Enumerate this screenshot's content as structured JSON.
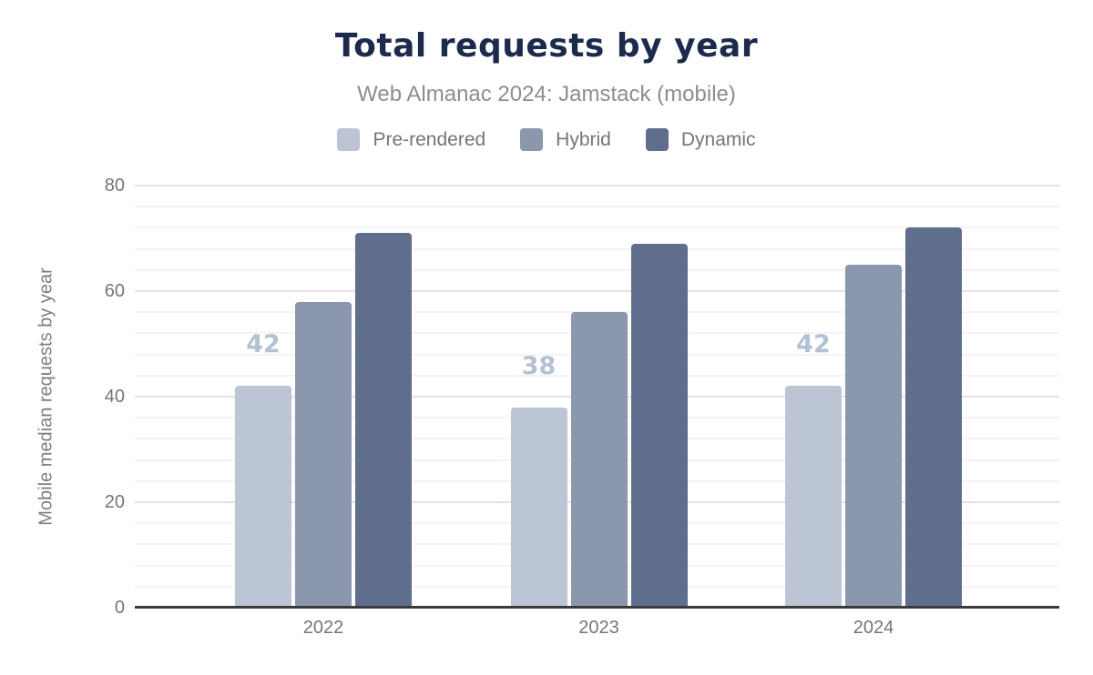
{
  "chart_data": {
    "type": "bar",
    "title": "Total requests by year",
    "subtitle": "Web Almanac 2024: Jamstack (mobile)",
    "ylabel": "Mobile median requests by year",
    "xlabel": "",
    "categories": [
      "2022",
      "2023",
      "2024"
    ],
    "series": [
      {
        "name": "Pre-rendered",
        "color": "#bcc5d4",
        "values": [
          42,
          38,
          42
        ],
        "show_labels": true,
        "data_labels": [
          "42",
          "38",
          "42"
        ],
        "label_color": "#b4c0d4"
      },
      {
        "name": "Hybrid",
        "color": "#8b97ad",
        "values": [
          58,
          56,
          65
        ],
        "show_labels": false
      },
      {
        "name": "Dynamic",
        "color": "#5f6e8c",
        "values": [
          71,
          69,
          72
        ],
        "show_labels": false
      }
    ],
    "ylim": [
      0,
      80
    ],
    "y_major_step": 20,
    "y_minor_step": 4,
    "y_tick_labels": [
      "0",
      "20",
      "40",
      "60",
      "80"
    ],
    "grid": true,
    "legend_position": "top",
    "colors": {
      "title": "#1b2a4d",
      "subtitle": "#8d8d8d",
      "axis_text": "#757575",
      "axis_line": "#3a3a3a",
      "major_gridline": "#e3e3e7",
      "minor_gridline": "#f3f3f5",
      "background": "#ffffff"
    }
  }
}
